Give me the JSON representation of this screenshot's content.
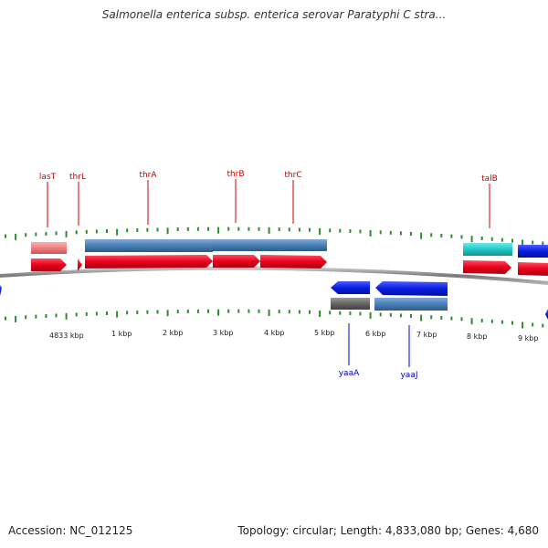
{
  "title": "Salmonella enterica subsp. enterica serovar Paratyphi C stra...",
  "footer": {
    "accession": "Accession: NC_012125",
    "summary": "Topology: circular; Length: 4,833,080 bp; Genes: 4,680"
  },
  "colors": {
    "backbone": "#8a8a8a",
    "tick": "#2e8b2e",
    "forward_gene": "#e8001c",
    "reverse_gene": "#0a1ee0",
    "cds_blue": "#4a7fb5",
    "rna_pink": "#f08080",
    "cds_cyan": "#20c8c8",
    "grey_feature": "#666666",
    "forward_label": "#cc0000",
    "reverse_label": "#0000cc"
  },
  "scale_labels": [
    "4833 kbp",
    "1 kbp",
    "2 kbp",
    "3 kbp",
    "4 kbp",
    "5 kbp",
    "6 kbp",
    "7 kbp",
    "8 kbp",
    "9 kbp"
  ],
  "forward_labels": [
    "lasT",
    "thrL",
    "thrA",
    "thrB",
    "thrC",
    "talB"
  ],
  "reverse_labels": [
    "yaaA",
    "yaaJ"
  ]
}
